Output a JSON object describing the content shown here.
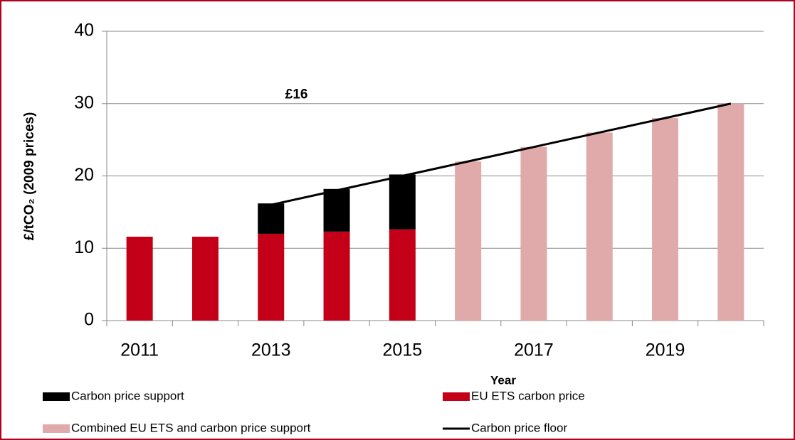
{
  "chart_data": {
    "type": "bar",
    "x_label": "Year",
    "y_label": "£/tCO₂ (2009 prices)",
    "annotation": "£16",
    "categories": [
      "2011",
      null,
      "2013",
      null,
      "2015",
      null,
      "2017",
      null,
      "2019",
      null
    ],
    "series": [
      {
        "name": "EU ETS carbon price",
        "color": "#c40018",
        "kind": "bar",
        "stack": 0,
        "values": [
          11.6,
          11.6,
          12.0,
          12.3,
          12.6,
          null,
          null,
          null,
          null,
          null
        ]
      },
      {
        "name": "Carbon price support",
        "color": "#000000",
        "kind": "bar",
        "stack": 0,
        "values": [
          null,
          null,
          4.2,
          5.9,
          7.6,
          null,
          null,
          null,
          null,
          null
        ]
      },
      {
        "name": "Combined EU ETS and carbon price support",
        "color": "#e0aaaa",
        "kind": "bar",
        "stack": 1,
        "values": [
          null,
          null,
          null,
          null,
          null,
          22,
          24,
          26,
          28,
          30
        ]
      },
      {
        "name": "Carbon price floor",
        "color": "#000000",
        "kind": "line",
        "values": [
          null,
          null,
          16,
          18,
          20,
          22,
          24,
          26,
          28,
          30
        ]
      }
    ],
    "legend_order": [
      1,
      0,
      2,
      3
    ],
    "ylim": [
      0,
      40
    ],
    "yticks": [
      0,
      10,
      20,
      30,
      40
    ],
    "grid": true
  }
}
